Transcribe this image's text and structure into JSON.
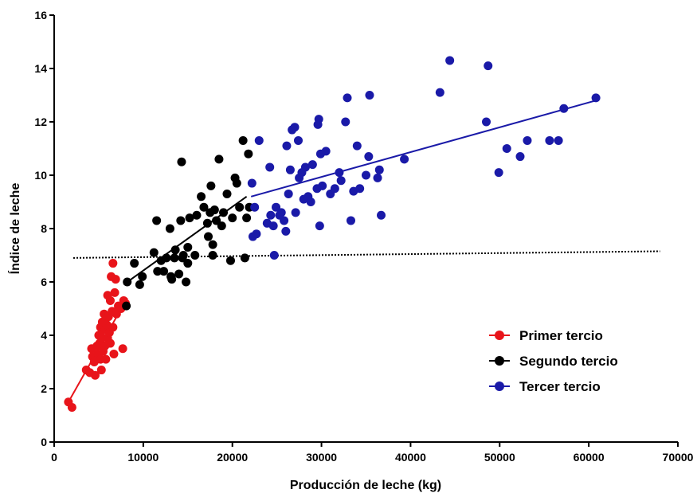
{
  "chart_data": {
    "type": "scatter",
    "xlabel": "Producción de leche (kg)",
    "ylabel": "Índice de leche",
    "xlim": [
      0,
      70000
    ],
    "ylim": [
      0,
      16
    ],
    "x_ticks": [
      "0",
      "10000",
      "20000",
      "30000",
      "40000",
      "50000",
      "60000",
      "70000"
    ],
    "y_ticks": [
      "0",
      "2",
      "4",
      "6",
      "8",
      "10",
      "12",
      "14",
      "16"
    ],
    "grid": false,
    "legend_position": "lower-right",
    "series": [
      {
        "name": "Primer tercio",
        "color": "#e8141a",
        "points": [
          [
            1600,
            1.5
          ],
          [
            2000,
            1.3
          ],
          [
            3600,
            2.7
          ],
          [
            4000,
            2.6
          ],
          [
            4200,
            3.5
          ],
          [
            4300,
            3.2
          ],
          [
            4500,
            3.0
          ],
          [
            4600,
            2.5
          ],
          [
            4800,
            3.6
          ],
          [
            4900,
            3.3
          ],
          [
            5000,
            4.0
          ],
          [
            5100,
            3.7
          ],
          [
            5200,
            4.3
          ],
          [
            5200,
            3.1
          ],
          [
            5300,
            2.7
          ],
          [
            5400,
            3.9
          ],
          [
            5400,
            4.5
          ],
          [
            5500,
            3.4
          ],
          [
            5600,
            4.8
          ],
          [
            5700,
            4.2
          ],
          [
            5700,
            3.6
          ],
          [
            5800,
            3.1
          ],
          [
            5900,
            4.4
          ],
          [
            6000,
            5.5
          ],
          [
            6000,
            3.9
          ],
          [
            6100,
            4.7
          ],
          [
            6200,
            4.1
          ],
          [
            6300,
            5.3
          ],
          [
            6300,
            3.7
          ],
          [
            6400,
            6.2
          ],
          [
            6500,
            4.9
          ],
          [
            6600,
            6.7
          ],
          [
            6600,
            4.3
          ],
          [
            6700,
            3.3
          ],
          [
            6800,
            5.6
          ],
          [
            6900,
            6.1
          ],
          [
            7000,
            4.8
          ],
          [
            7200,
            5.1
          ],
          [
            7500,
            5.0
          ],
          [
            7700,
            3.5
          ],
          [
            7800,
            5.3
          ],
          [
            8000,
            5.2
          ]
        ],
        "trend": [
          [
            1600,
            1.5
          ],
          [
            8200,
            5.4
          ]
        ]
      },
      {
        "name": "Segundo tercio",
        "color": "#000000",
        "points": [
          [
            8100,
            5.1
          ],
          [
            8200,
            6.0
          ],
          [
            9000,
            6.7
          ],
          [
            9600,
            5.9
          ],
          [
            9900,
            6.2
          ],
          [
            11200,
            7.1
          ],
          [
            11500,
            8.3
          ],
          [
            11600,
            6.4
          ],
          [
            12000,
            6.8
          ],
          [
            12300,
            6.4
          ],
          [
            12600,
            6.9
          ],
          [
            13000,
            8.0
          ],
          [
            13100,
            6.2
          ],
          [
            13200,
            6.1
          ],
          [
            13500,
            6.9
          ],
          [
            13600,
            7.2
          ],
          [
            14000,
            6.3
          ],
          [
            14200,
            8.3
          ],
          [
            14300,
            10.5
          ],
          [
            14400,
            6.9
          ],
          [
            14500,
            7.0
          ],
          [
            14800,
            6.0
          ],
          [
            15000,
            6.7
          ],
          [
            15000,
            7.3
          ],
          [
            15200,
            8.4
          ],
          [
            15800,
            7.0
          ],
          [
            16000,
            8.5
          ],
          [
            16500,
            9.2
          ],
          [
            16800,
            8.8
          ],
          [
            17200,
            8.2
          ],
          [
            17300,
            7.7
          ],
          [
            17500,
            8.6
          ],
          [
            17600,
            9.6
          ],
          [
            17800,
            7.4
          ],
          [
            17800,
            7.0
          ],
          [
            18000,
            8.7
          ],
          [
            18200,
            8.3
          ],
          [
            18500,
            10.6
          ],
          [
            18800,
            8.1
          ],
          [
            19000,
            8.6
          ],
          [
            19400,
            9.3
          ],
          [
            19800,
            6.8
          ],
          [
            20000,
            8.4
          ],
          [
            20300,
            9.9
          ],
          [
            20500,
            9.7
          ],
          [
            20800,
            8.8
          ],
          [
            21200,
            11.3
          ],
          [
            21400,
            6.9
          ],
          [
            21600,
            8.4
          ],
          [
            21800,
            10.8
          ],
          [
            21900,
            8.8
          ]
        ],
        "trend": [
          [
            7800,
            5.9
          ],
          [
            21600,
            9.2
          ]
        ]
      },
      {
        "name": "Tercer tercio",
        "color": "#1a1aa8",
        "points": [
          [
            22200,
            9.7
          ],
          [
            22300,
            7.7
          ],
          [
            22500,
            8.8
          ],
          [
            22700,
            7.8
          ],
          [
            23000,
            11.3
          ],
          [
            23900,
            8.2
          ],
          [
            24200,
            10.3
          ],
          [
            24300,
            8.5
          ],
          [
            24600,
            8.1
          ],
          [
            24700,
            7.0
          ],
          [
            24900,
            8.8
          ],
          [
            25300,
            8.5
          ],
          [
            25500,
            8.6
          ],
          [
            25800,
            8.3
          ],
          [
            26000,
            7.9
          ],
          [
            26100,
            11.1
          ],
          [
            26300,
            9.3
          ],
          [
            26500,
            10.2
          ],
          [
            26700,
            11.7
          ],
          [
            27000,
            11.8
          ],
          [
            27100,
            8.6
          ],
          [
            27400,
            11.3
          ],
          [
            27500,
            9.9
          ],
          [
            27800,
            10.1
          ],
          [
            28000,
            9.1
          ],
          [
            28200,
            10.3
          ],
          [
            28500,
            9.2
          ],
          [
            28800,
            9.0
          ],
          [
            29000,
            10.4
          ],
          [
            29500,
            9.5
          ],
          [
            29600,
            11.9
          ],
          [
            29700,
            12.1
          ],
          [
            29800,
            8.1
          ],
          [
            29900,
            10.8
          ],
          [
            30100,
            9.6
          ],
          [
            30500,
            10.9
          ],
          [
            31000,
            9.3
          ],
          [
            31500,
            9.5
          ],
          [
            32000,
            10.1
          ],
          [
            32200,
            9.8
          ],
          [
            32700,
            12.0
          ],
          [
            32900,
            12.9
          ],
          [
            33300,
            8.3
          ],
          [
            33600,
            9.4
          ],
          [
            34000,
            11.1
          ],
          [
            34300,
            9.5
          ],
          [
            35000,
            10.0
          ],
          [
            35300,
            10.7
          ],
          [
            35400,
            13.0
          ],
          [
            36300,
            9.9
          ],
          [
            36500,
            10.2
          ],
          [
            36700,
            8.5
          ],
          [
            39300,
            10.6
          ],
          [
            43300,
            13.1
          ],
          [
            44400,
            14.3
          ],
          [
            48500,
            12.0
          ],
          [
            48700,
            14.1
          ],
          [
            49900,
            10.1
          ],
          [
            50800,
            11.0
          ],
          [
            52300,
            10.7
          ],
          [
            53100,
            11.3
          ],
          [
            55600,
            11.3
          ],
          [
            56600,
            11.3
          ],
          [
            57200,
            12.5
          ],
          [
            60800,
            12.9
          ]
        ],
        "trend": [
          [
            22100,
            9.2
          ],
          [
            60800,
            12.8
          ]
        ]
      }
    ],
    "reference_line": [
      [
        0,
        6.9
      ],
      [
        68000,
        7.15
      ]
    ]
  }
}
